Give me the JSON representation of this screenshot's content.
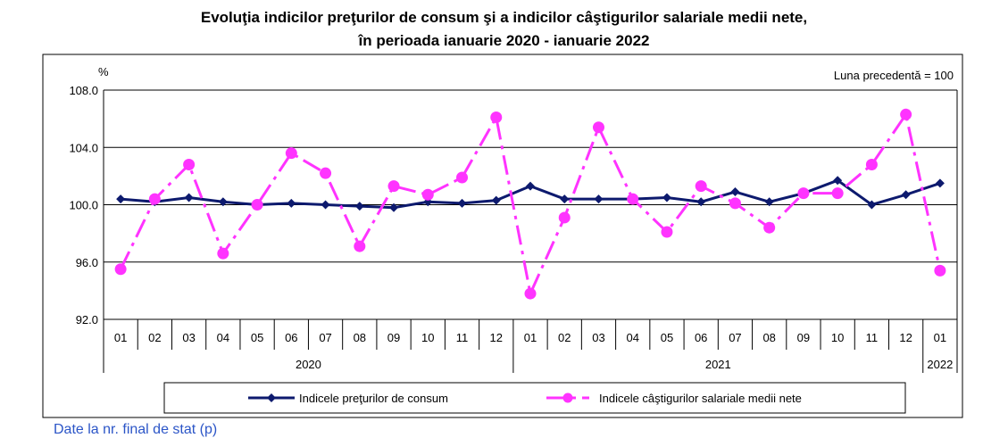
{
  "title": {
    "line1": "Evoluţia indicilor preţurilor de consum şi a indicilor câştigurilor salariale medii nete,",
    "line2": "în perioada ianuarie 2020 - ianuarie 2022"
  },
  "footer_text": "Date la nr. final de stat (p)",
  "colors": {
    "cpi": "#0d1a6e",
    "wages": "#ff33ff",
    "grid": "#000000"
  },
  "chart_data": {
    "type": "line",
    "ylabel": "%",
    "note": "Luna precedentă = 100",
    "ylim": [
      92,
      108
    ],
    "yticks": [
      "92.0",
      "96.0",
      "100.0",
      "104.0",
      "108.0"
    ],
    "categories": [
      "01",
      "02",
      "03",
      "04",
      "05",
      "06",
      "07",
      "08",
      "09",
      "10",
      "11",
      "12",
      "01",
      "02",
      "03",
      "04",
      "05",
      "06",
      "07",
      "08",
      "09",
      "10",
      "11",
      "12",
      "01"
    ],
    "years": [
      {
        "label": "2020",
        "from": 0,
        "to": 11
      },
      {
        "label": "2021",
        "from": 12,
        "to": 23
      },
      {
        "label": "2022",
        "from": 24,
        "to": 24
      }
    ],
    "series": [
      {
        "name": "Indicele preţurilor de consum",
        "style": "solid-diamond",
        "values": [
          100.4,
          100.2,
          100.5,
          100.2,
          100.0,
          100.1,
          100.0,
          99.9,
          99.8,
          100.2,
          100.1,
          100.3,
          101.3,
          100.4,
          100.4,
          100.4,
          100.5,
          100.2,
          100.9,
          100.2,
          100.8,
          101.7,
          100.0,
          100.7,
          101.5
        ]
      },
      {
        "name": "Indicele câştigurilor salariale medii nete",
        "style": "dashdot-circle",
        "values": [
          95.5,
          100.4,
          102.8,
          96.6,
          100.0,
          103.6,
          102.2,
          97.1,
          101.3,
          100.7,
          101.9,
          106.1,
          93.8,
          99.1,
          105.4,
          100.4,
          98.1,
          101.3,
          100.1,
          98.4,
          100.8,
          100.8,
          102.8,
          106.3,
          95.4
        ]
      }
    ]
  }
}
